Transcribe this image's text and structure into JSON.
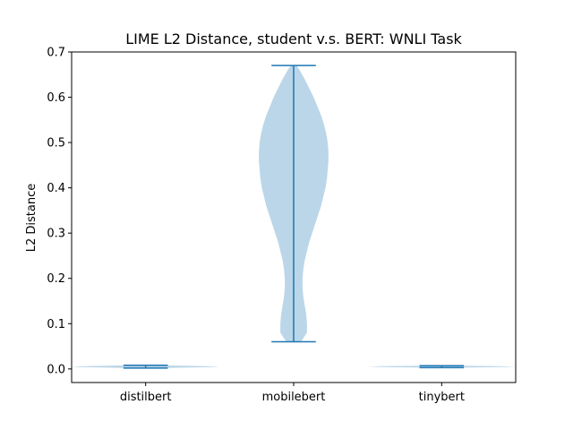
{
  "chart_data": {
    "type": "violin",
    "title": "LIME L2 Distance, student v.s. BERT: WNLI Task",
    "xlabel": "",
    "ylabel": "L2 Distance",
    "ylim": [
      -0.03,
      0.7
    ],
    "yticks": [
      0.0,
      0.1,
      0.2,
      0.3,
      0.4,
      0.5,
      0.6,
      0.7
    ],
    "ytick_labels": [
      "0.0",
      "0.1",
      "0.2",
      "0.3",
      "0.4",
      "0.5",
      "0.6",
      "0.7"
    ],
    "categories": [
      "distilbert",
      "mobilebert",
      "tinybert"
    ],
    "violins": [
      {
        "category": "distilbert",
        "min": 0.002,
        "max": 0.008,
        "profile": [
          [
            0.002,
            0.1
          ],
          [
            0.004,
            0.45
          ],
          [
            0.005,
            0.5
          ],
          [
            0.006,
            0.4
          ],
          [
            0.008,
            0.1
          ]
        ]
      },
      {
        "category": "mobilebert",
        "min": 0.06,
        "max": 0.67,
        "profile": [
          [
            0.06,
            0.05
          ],
          [
            0.08,
            0.09
          ],
          [
            0.1,
            0.09
          ],
          [
            0.12,
            0.085
          ],
          [
            0.14,
            0.075
          ],
          [
            0.16,
            0.065
          ],
          [
            0.18,
            0.06
          ],
          [
            0.2,
            0.06
          ],
          [
            0.22,
            0.065
          ],
          [
            0.24,
            0.075
          ],
          [
            0.26,
            0.09
          ],
          [
            0.28,
            0.105
          ],
          [
            0.3,
            0.125
          ],
          [
            0.32,
            0.145
          ],
          [
            0.34,
            0.165
          ],
          [
            0.36,
            0.185
          ],
          [
            0.38,
            0.2
          ],
          [
            0.4,
            0.215
          ],
          [
            0.42,
            0.225
          ],
          [
            0.44,
            0.23
          ],
          [
            0.46,
            0.235
          ],
          [
            0.48,
            0.235
          ],
          [
            0.5,
            0.23
          ],
          [
            0.52,
            0.22
          ],
          [
            0.54,
            0.205
          ],
          [
            0.56,
            0.185
          ],
          [
            0.58,
            0.16
          ],
          [
            0.6,
            0.135
          ],
          [
            0.62,
            0.105
          ],
          [
            0.64,
            0.075
          ],
          [
            0.66,
            0.04
          ],
          [
            0.67,
            0.02
          ]
        ]
      },
      {
        "category": "tinybert",
        "min": 0.003,
        "max": 0.007,
        "profile": [
          [
            0.003,
            0.1
          ],
          [
            0.004,
            0.4
          ],
          [
            0.005,
            0.5
          ],
          [
            0.006,
            0.4
          ],
          [
            0.007,
            0.1
          ]
        ]
      }
    ],
    "colors": {
      "body_fill": "#1f77b4",
      "body_opacity": 0.3,
      "lines": "#1f77b4"
    },
    "grid": false
  }
}
